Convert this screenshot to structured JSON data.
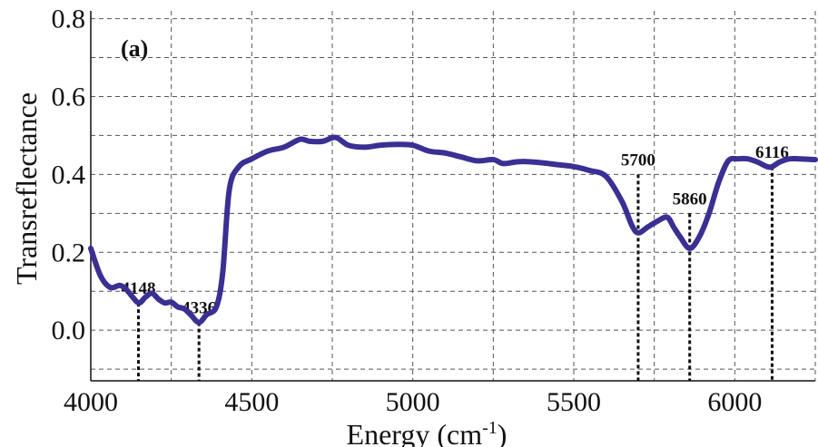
{
  "chart_data": {
    "type": "line",
    "panel_label": "(a)",
    "xlabel_main": "Energy (cm",
    "xlabel_sup": "-1",
    "xlabel_close": ")",
    "ylabel": "Transreflectance",
    "xlim": [
      4000,
      6250
    ],
    "ylim": [
      -0.13,
      0.82
    ],
    "xticks": [
      4000,
      4500,
      5000,
      5500,
      6000
    ],
    "xtick_labels": [
      "4000",
      "4500",
      "5000",
      "5500",
      "6000"
    ],
    "yticks": [
      0.0,
      0.2,
      0.4,
      0.6,
      0.8
    ],
    "ytick_labels": [
      "0.0",
      "0.2",
      "0.4",
      "0.6",
      "0.8"
    ],
    "grid": true,
    "line_color": "#3a2f93",
    "series": [
      {
        "x": [
          4000,
          4030,
          4060,
          4090,
          4110,
          4130,
          4150,
          4170,
          4190,
          4210,
          4230,
          4250,
          4270,
          4290,
          4310,
          4336,
          4360,
          4390,
          4410,
          4430,
          4460,
          4500,
          4550,
          4600,
          4650,
          4680,
          4720,
          4760,
          4800,
          4850,
          4900,
          4950,
          5000,
          5050,
          5100,
          5150,
          5200,
          5250,
          5280,
          5320,
          5350,
          5400,
          5450,
          5500,
          5550,
          5600,
          5650,
          5680,
          5700,
          5730,
          5760,
          5790,
          5810,
          5830,
          5860,
          5890,
          5920,
          5950,
          5980,
          6010,
          6040,
          6070,
          6100,
          6116,
          6140,
          6170,
          6200,
          6250
        ],
        "y": [
          0.21,
          0.14,
          0.11,
          0.115,
          0.105,
          0.085,
          0.07,
          0.085,
          0.095,
          0.08,
          0.07,
          0.072,
          0.06,
          0.055,
          0.04,
          0.02,
          0.04,
          0.06,
          0.15,
          0.36,
          0.42,
          0.44,
          0.46,
          0.47,
          0.49,
          0.485,
          0.485,
          0.495,
          0.475,
          0.47,
          0.475,
          0.477,
          0.475,
          0.46,
          0.455,
          0.445,
          0.435,
          0.438,
          0.428,
          0.432,
          0.433,
          0.43,
          0.425,
          0.42,
          0.41,
          0.395,
          0.33,
          0.27,
          0.25,
          0.265,
          0.28,
          0.29,
          0.265,
          0.24,
          0.21,
          0.24,
          0.3,
          0.38,
          0.435,
          0.44,
          0.44,
          0.432,
          0.42,
          0.42,
          0.432,
          0.44,
          0.44,
          0.438
        ]
      }
    ],
    "annotations": [
      {
        "label": "4148",
        "x": 4148,
        "y_top": 0.07
      },
      {
        "label": "4336",
        "x": 4336,
        "y_top": 0.02
      },
      {
        "label": "5700",
        "x": 5700,
        "y_top": 0.4
      },
      {
        "label": "5860",
        "x": 5860,
        "y_top": 0.3
      },
      {
        "label": "6116",
        "x": 6116,
        "y_top": 0.42
      }
    ]
  }
}
